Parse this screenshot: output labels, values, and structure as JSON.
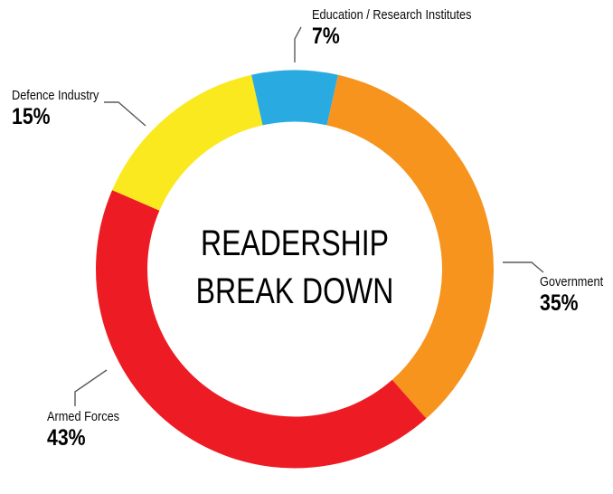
{
  "page": {
    "background_color": "#FFFFFF",
    "text_color": "#000000",
    "leader_line_color": "#595A5C"
  },
  "chart_data": {
    "type": "pie",
    "variant": "donut",
    "title": "READERSHIP BREAK DOWN",
    "title_lines": [
      "READERSHIP",
      "BREAK DOWN"
    ],
    "legend_position": "callout-labels-around-ring",
    "first_segment_centered_at": "top",
    "direction": "clockwise",
    "segments": [
      {
        "id": "education",
        "label": "Education / Research Institutes",
        "value": 7,
        "pct_label": "7%",
        "color": "#29ABE2"
      },
      {
        "id": "government",
        "label": "Government",
        "value": 35,
        "pct_label": "35%",
        "color": "#F7941E"
      },
      {
        "id": "armed_forces",
        "label": "Armed Forces",
        "value": 43,
        "pct_label": "43%",
        "color": "#ED1C24"
      },
      {
        "id": "defence_industry",
        "label": "Defence Industry",
        "value": 15,
        "pct_label": "15%",
        "color": "#FAE91E"
      }
    ]
  }
}
